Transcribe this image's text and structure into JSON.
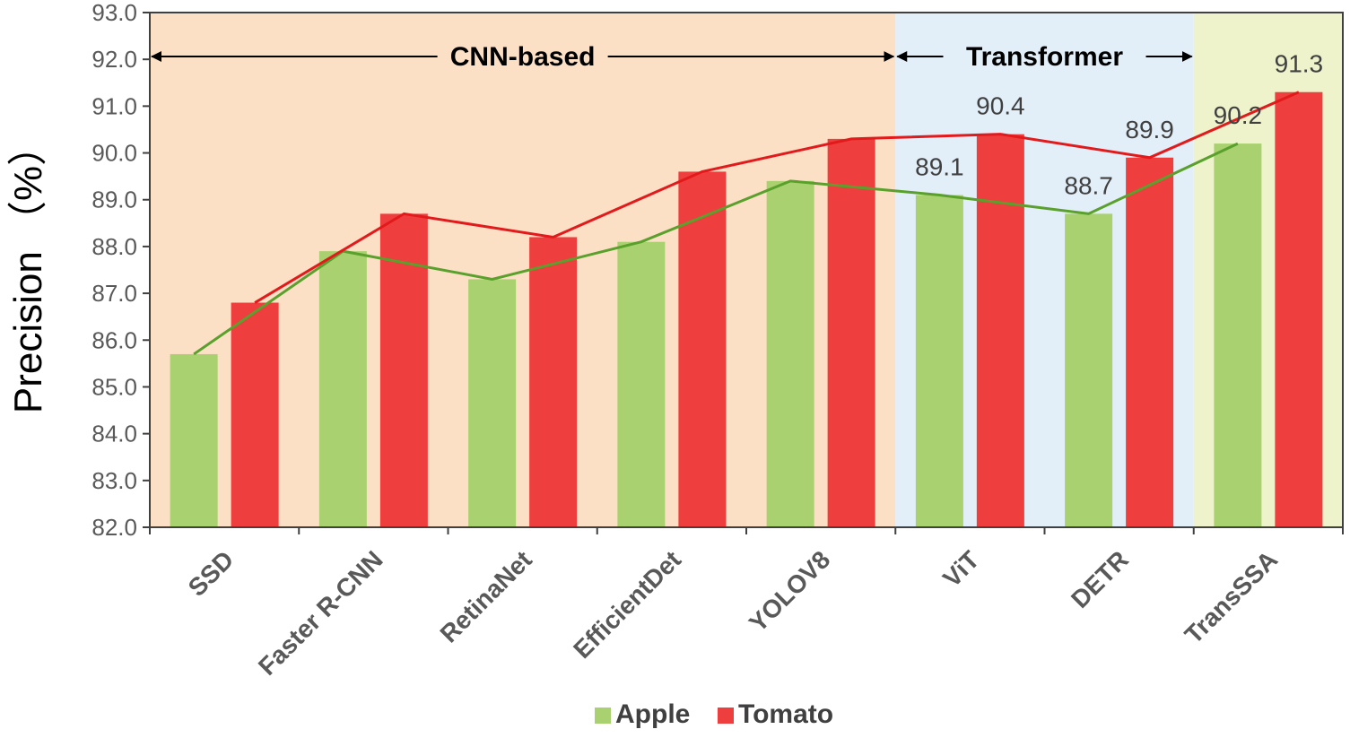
{
  "chart_data": {
    "type": "bar",
    "ylabel": "Precision （%）",
    "ylim": [
      82.0,
      93.0
    ],
    "ytick_step": 1.0,
    "yticks": [
      "82.0",
      "83.0",
      "84.0",
      "85.0",
      "86.0",
      "87.0",
      "88.0",
      "89.0",
      "90.0",
      "91.0",
      "92.0",
      "93.0"
    ],
    "categories": [
      "SSD",
      "Faster R-CNN",
      "RetinaNet",
      "EfficientDet",
      "YOLOV8",
      "ViT",
      "DETR",
      "TransSSA"
    ],
    "series": [
      {
        "name": "Apple",
        "color": "#a9d16f",
        "line_color": "#5aa02c",
        "values": [
          85.7,
          87.9,
          87.3,
          88.1,
          89.4,
          89.1,
          88.7,
          90.2
        ]
      },
      {
        "name": "Tomato",
        "color": "#ee3e3e",
        "line_color": "#e31a1c",
        "values": [
          86.8,
          88.7,
          88.2,
          89.6,
          90.3,
          90.4,
          89.9,
          91.3
        ]
      }
    ],
    "data_labels": [
      {
        "series": 0,
        "index": 5,
        "text": "89.1"
      },
      {
        "series": 1,
        "index": 5,
        "text": "90.4"
      },
      {
        "series": 0,
        "index": 6,
        "text": "88.7"
      },
      {
        "series": 1,
        "index": 6,
        "text": "89.9"
      },
      {
        "series": 0,
        "index": 7,
        "text": "90.2"
      },
      {
        "series": 1,
        "index": 7,
        "text": "91.3"
      }
    ],
    "regions": [
      {
        "label": "CNN-based",
        "from": 0,
        "to": 4,
        "color": "#fce0c6"
      },
      {
        "label": "Transformer",
        "from": 5,
        "to": 6,
        "color": "#e2eef8"
      },
      {
        "label": "",
        "from": 7,
        "to": 7,
        "color": "#eef3cb"
      }
    ],
    "legend_position": "bottom-center",
    "grid": false
  }
}
